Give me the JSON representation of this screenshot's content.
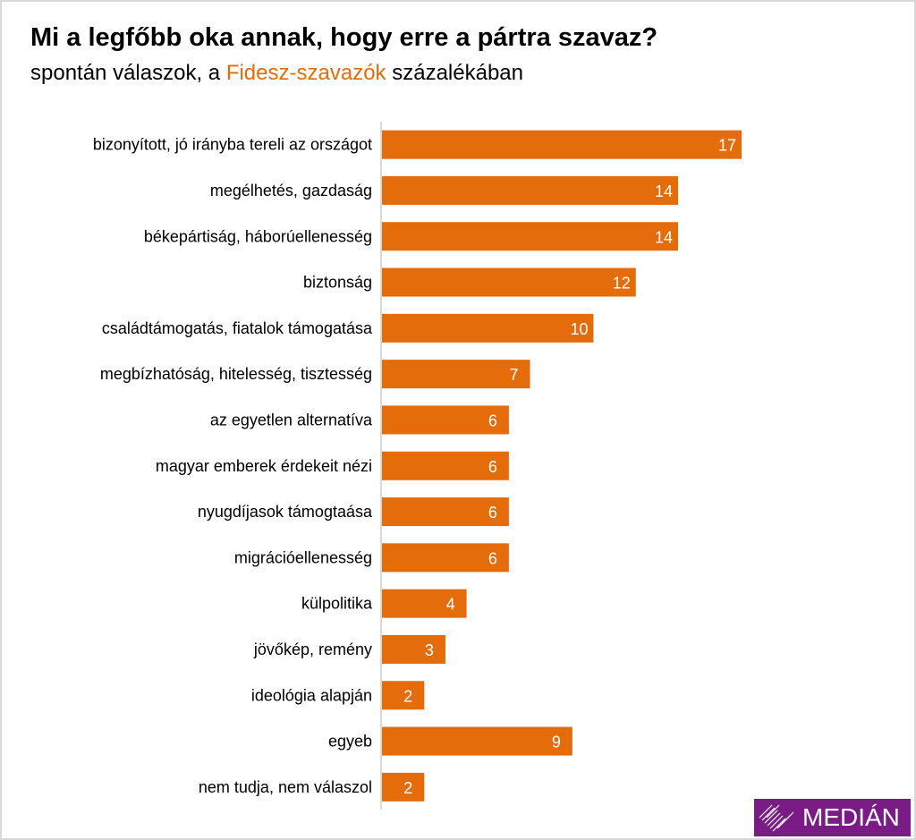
{
  "colors": {
    "bar": "#e46c0a",
    "highlight": "#e46c0a",
    "logo_bg": "#7b1b86",
    "axis": "#d9d9d9"
  },
  "header": {
    "title": "Mi a legfőbb oka annak, hogy erre a pártra szavaz?",
    "subtitle_before": "spontán válaszok, a ",
    "subtitle_highlight": "Fidesz-szavazók",
    "subtitle_after": " százalékában"
  },
  "logo": {
    "text": "MEDIÁN",
    "icon": "diamond-stripes-icon"
  },
  "chart_data": {
    "type": "bar",
    "orientation": "horizontal",
    "title": "Mi a legfőbb oka annak, hogy erre a pártra szavaz?",
    "subtitle": "spontán válaszok, a Fidesz-szavazók százalékában",
    "xlabel": "",
    "ylabel": "",
    "xlim": [
      0,
      17
    ],
    "grid": false,
    "categories": [
      "bizonyított, jó irányba tereli az országot",
      "megélhetés, gazdaság",
      "békepártiság, háborúellenesség",
      "biztonság",
      "családtámogatás, fiatalok támogatása",
      "megbízhatóság, hitelesség, tisztesség",
      "az egyetlen alternatíva",
      "magyar emberek érdekeit nézi",
      "nyugdíjasok támogtaása",
      "migrációellenesség",
      "külpolitika",
      "jövőkép, remény",
      "ideológia alapján",
      "egyeb",
      "nem tudja, nem válaszol"
    ],
    "values": [
      17,
      14,
      14,
      12,
      10,
      7,
      6,
      6,
      6,
      6,
      4,
      3,
      2,
      9,
      2
    ]
  }
}
